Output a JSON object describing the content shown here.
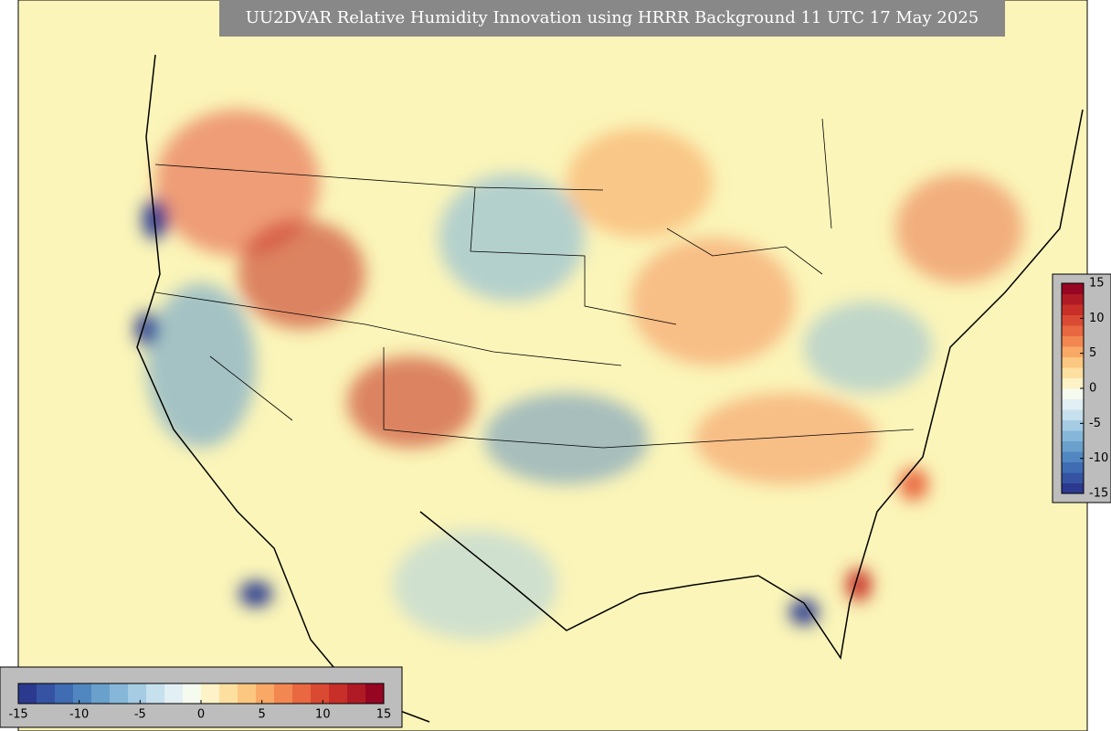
{
  "title": "UU2DVAR Relative Humidity Innovation using HRRR Background 11 UTC 17 May 2025",
  "colorbars": [
    {
      "orientation": "horizontal",
      "lim": [
        -15,
        15
      ],
      "ticks": [
        -15,
        -10,
        -5,
        0,
        5,
        10,
        15
      ],
      "colors": [
        "#2b3a8f",
        "#3553a2",
        "#3f6cb2",
        "#5187c0",
        "#6aa0cc",
        "#86b7d9",
        "#a6cce4",
        "#c6e0ee",
        "#e2eff4",
        "#f6fbf0",
        "#fdf3c6",
        "#fde0a0",
        "#fcc781",
        "#f9a866",
        "#f38752",
        "#e96741",
        "#da4a33",
        "#c82f28",
        "#b01a25",
        "#960522"
      ]
    },
    {
      "orientation": "vertical",
      "lim": [
        -15,
        15
      ],
      "ticks": [
        -15,
        -10,
        -5,
        0,
        5,
        10,
        15
      ],
      "colors": [
        "#2b3a8f",
        "#3553a2",
        "#3f6cb2",
        "#5187c0",
        "#6aa0cc",
        "#86b7d9",
        "#a6cce4",
        "#c6e0ee",
        "#e2eff4",
        "#f6fbf0",
        "#fdf3c6",
        "#fde0a0",
        "#fcc781",
        "#f9a866",
        "#f38752",
        "#e96741",
        "#da4a33",
        "#c82f28",
        "#b01a25",
        "#960522"
      ]
    }
  ]
}
